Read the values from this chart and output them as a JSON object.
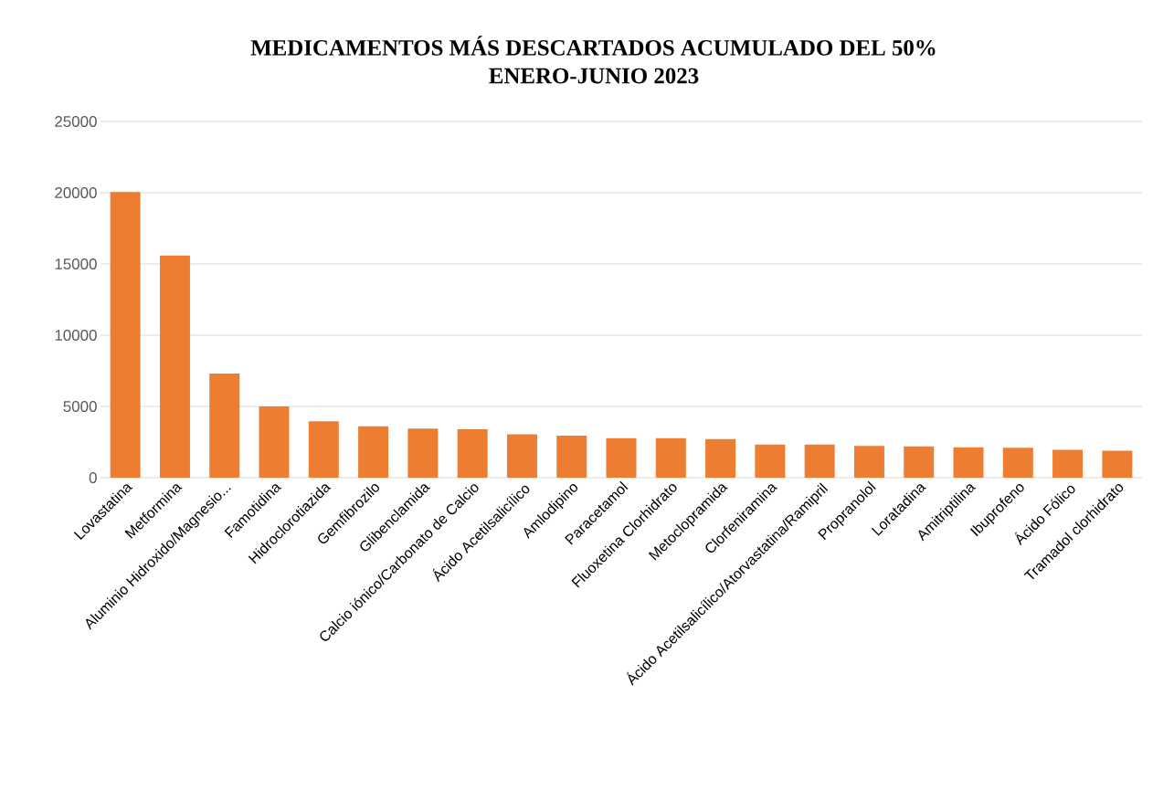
{
  "chart_data": {
    "type": "bar",
    "title": "MEDICAMENTOS MÁS DESCARTADOS ACUMULADO DEL 50%",
    "subtitle": "ENERO-JUNIO 2023",
    "categories": [
      "Lovastatina",
      "Metformina",
      "Aluminio Hidroxido/Magnesio...",
      "Famotidina",
      "Hidroclorotiazida",
      "Gemfibrozilo",
      "Glibenclamida",
      "Calcio iónico/Carbonato de Calcio",
      "Ácido Acetilsalicílico",
      "Amlodipino",
      "Paracetamol",
      "Fluoxetina Clorhidrato",
      "Metoclopramida",
      "Clorfeniramina",
      "Ácido Acetilsalicílico/Atorvastatina/Ramipril",
      "Propranolol",
      "Loratadina",
      "Amitriptilina",
      "Ibuprofeno",
      "Ácido Fólico",
      "Tramadol clorhidrato"
    ],
    "values": [
      20050,
      15600,
      7300,
      5000,
      3950,
      3600,
      3450,
      3400,
      3050,
      2950,
      2770,
      2770,
      2700,
      2330,
      2330,
      2230,
      2200,
      2130,
      2100,
      1960,
      1890
    ],
    "color": "#ed7d31",
    "ylim": [
      0,
      25000
    ],
    "yticks": [
      0,
      5000,
      10000,
      15000,
      20000,
      25000
    ],
    "grid": "y"
  }
}
